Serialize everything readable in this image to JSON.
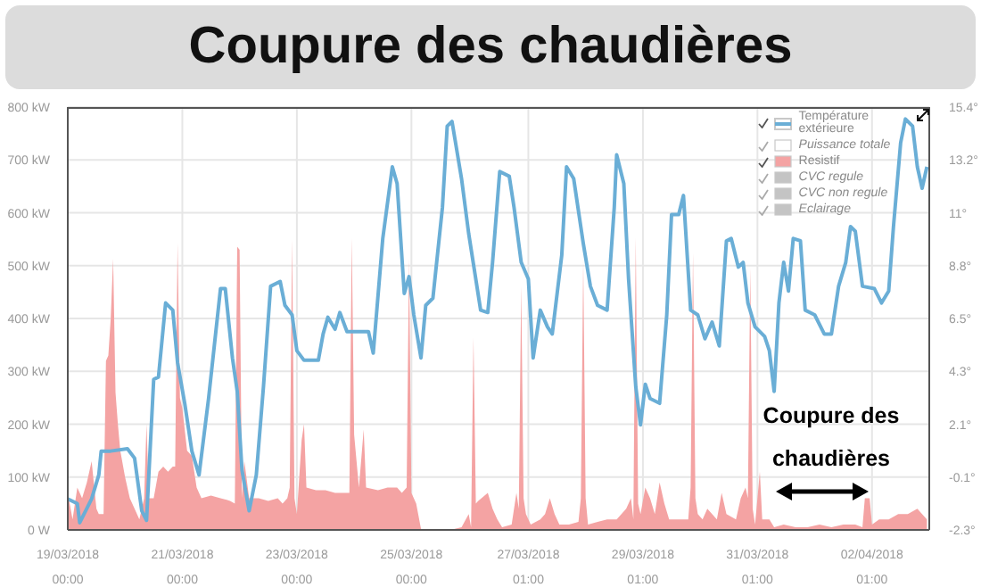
{
  "chart_data": {
    "type": "line",
    "title": "Coupure des chaudières",
    "annotations": [
      "Coupure des chaudières"
    ],
    "xlim": [
      "2018-03-19T00:00",
      "2018-04-03T01:00"
    ],
    "xticks": [
      {
        "value": "2018-03-19T00:00",
        "label": "19/03/2018 00:00"
      },
      {
        "value": "2018-03-21T00:00",
        "label": "21/03/2018 00:00"
      },
      {
        "value": "2018-03-23T00:00",
        "label": "23/03/2018 00:00"
      },
      {
        "value": "2018-03-25T00:00",
        "label": "25/03/2018 00:00"
      },
      {
        "value": "2018-03-27T01:00",
        "label": "27/03/2018 01:00"
      },
      {
        "value": "2018-03-29T01:00",
        "label": "29/03/2018 01:00"
      },
      {
        "value": "2018-03-31T01:00",
        "label": "31/03/2018 01:00"
      },
      {
        "value": "2018-04-02T01:00",
        "label": "02/04/2018 01:00"
      }
    ],
    "ylim": [
      0,
      800
    ],
    "yticks": [
      {
        "value": 0,
        "label": "0 W"
      },
      {
        "value": 100,
        "label": "100 kW"
      },
      {
        "value": 200,
        "label": "200 kW"
      },
      {
        "value": 300,
        "label": "300 kW"
      },
      {
        "value": 400,
        "label": "400 kW"
      },
      {
        "value": 500,
        "label": "500 kW"
      },
      {
        "value": 600,
        "label": "600 kW"
      },
      {
        "value": 700,
        "label": "700 kW"
      },
      {
        "value": 800,
        "label": "800 kW"
      }
    ],
    "y2lim": [
      -2.3,
      15.4
    ],
    "y2ticks": [
      {
        "value": -2.3,
        "label": "-2.3°"
      },
      {
        "value": -0.0875,
        "label": "-0.1°"
      },
      {
        "value": 2.125,
        "label": "2.1°"
      },
      {
        "value": 4.3375,
        "label": "4.3°"
      },
      {
        "value": 6.55,
        "label": "6.5°"
      },
      {
        "value": 8.7625,
        "label": "8.8°"
      },
      {
        "value": 10.975,
        "label": "11°"
      },
      {
        "value": 13.1875,
        "label": "13.2°"
      },
      {
        "value": 15.4,
        "label": "15.4°"
      }
    ],
    "grid": true,
    "legend": "top right",
    "marker": "none",
    "series": [
      {
        "name": "Température extérieure",
        "axis": "y2",
        "color": "#6aaed6",
        "x": [
          "2018-03-19T00:00",
          "2018-03-19T04:00",
          "2018-03-19T05:00",
          "2018-03-19T08:00",
          "2018-03-19T10:00",
          "2018-03-19T13:00",
          "2018-03-19T14:00",
          "2018-03-19T18:00",
          "2018-03-20T01:00",
          "2018-03-20T04:00",
          "2018-03-20T07:00",
          "2018-03-20T09:00",
          "2018-03-20T12:00",
          "2018-03-20T14:00",
          "2018-03-20T17:00",
          "2018-03-20T20:00",
          "2018-03-20T22:00",
          "2018-03-21T01:00",
          "2018-03-21T04:00",
          "2018-03-21T07:00",
          "2018-03-21T11:00",
          "2018-03-21T16:00",
          "2018-03-21T18:00",
          "2018-03-21T21:00",
          "2018-03-21T23:00",
          "2018-03-22T01:00",
          "2018-03-22T04:00",
          "2018-03-22T07:00",
          "2018-03-22T10:00",
          "2018-03-22T13:00",
          "2018-03-22T17:00",
          "2018-03-22T19:00",
          "2018-03-22T22:00",
          "2018-03-23T00:00",
          "2018-03-23T03:00",
          "2018-03-23T09:00",
          "2018-03-23T11:00",
          "2018-03-23T13:00",
          "2018-03-23T16:00",
          "2018-03-23T18:00",
          "2018-03-23T21:00",
          "2018-03-24T06:00",
          "2018-03-24T08:00",
          "2018-03-24T12:00",
          "2018-03-24T16:00",
          "2018-03-24T18:00",
          "2018-03-24T21:00",
          "2018-03-24T23:00",
          "2018-03-25T01:00",
          "2018-03-25T04:00",
          "2018-03-25T06:00",
          "2018-03-25T09:00",
          "2018-03-25T13:00",
          "2018-03-25T15:00",
          "2018-03-25T17:00",
          "2018-03-25T21:00",
          "2018-03-26T00:00",
          "2018-03-26T05:00",
          "2018-03-26T08:00",
          "2018-03-26T10:00",
          "2018-03-26T13:00",
          "2018-03-26T17:00",
          "2018-03-26T19:00",
          "2018-03-26T22:00",
          "2018-03-27T01:00",
          "2018-03-27T03:00",
          "2018-03-27T06:00",
          "2018-03-27T09:00",
          "2018-03-27T11:00",
          "2018-03-27T15:00",
          "2018-03-27T17:00",
          "2018-03-27T20:00",
          "2018-03-28T00:00",
          "2018-03-28T03:00",
          "2018-03-28T06:00",
          "2018-03-28T10:00",
          "2018-03-28T13:00",
          "2018-03-28T14:00",
          "2018-03-28T17:00",
          "2018-03-28T19:00",
          "2018-03-28T22:00",
          "2018-03-29T00:00",
          "2018-03-29T02:00",
          "2018-03-29T04:00",
          "2018-03-29T08:00",
          "2018-03-29T11:00",
          "2018-03-29T13:00",
          "2018-03-29T16:00",
          "2018-03-29T18:00",
          "2018-03-29T21:00",
          "2018-03-30T00:00",
          "2018-03-30T03:00",
          "2018-03-30T06:00",
          "2018-03-30T09:00",
          "2018-03-30T12:00",
          "2018-03-30T14:00",
          "2018-03-30T17:00",
          "2018-03-30T19:00",
          "2018-03-30T21:00",
          "2018-03-31T00:00",
          "2018-03-31T04:00",
          "2018-03-31T06:00",
          "2018-03-31T08:00",
          "2018-03-31T10:00",
          "2018-03-31T12:00",
          "2018-03-31T14:00",
          "2018-03-31T16:00",
          "2018-03-31T19:00",
          "2018-03-31T21:00",
          "2018-04-01T01:00",
          "2018-04-01T05:00",
          "2018-04-01T08:00",
          "2018-04-01T11:00",
          "2018-04-01T14:00",
          "2018-04-01T16:00",
          "2018-04-01T18:00",
          "2018-04-01T21:00",
          "2018-04-02T02:00",
          "2018-04-02T05:00",
          "2018-04-02T08:00",
          "2018-04-02T10:00",
          "2018-04-02T13:00",
          "2018-04-02T15:00",
          "2018-04-02T18:00",
          "2018-04-02T20:00",
          "2018-04-02T22:00",
          "2018-04-03T00:00"
        ],
        "values": [
          -1.0,
          -1.2,
          -2.0,
          -1.4,
          -1.0,
          0.0,
          1.0,
          1.0,
          1.1,
          0.7,
          -1.5,
          -1.9,
          4.0,
          4.1,
          7.2,
          6.9,
          4.7,
          3.0,
          1.0,
          0.0,
          3.2,
          7.8,
          7.8,
          4.9,
          3.5,
          0.2,
          -1.5,
          0.0,
          3.7,
          7.9,
          8.1,
          7.1,
          6.7,
          5.2,
          4.8,
          4.8,
          5.9,
          6.6,
          6.1,
          6.8,
          6.0,
          6.0,
          5.1,
          9.9,
          12.9,
          12.2,
          7.6,
          8.3,
          6.7,
          4.9,
          7.1,
          7.4,
          11.2,
          14.6,
          14.8,
          12.4,
          10.1,
          6.9,
          6.8,
          8.9,
          12.7,
          12.5,
          11.2,
          8.9,
          8.2,
          4.9,
          6.9,
          6.2,
          5.9,
          9.2,
          12.9,
          12.4,
          9.7,
          7.9,
          7.1,
          6.9,
          11.2,
          13.4,
          12.2,
          8.2,
          3.7,
          2.1,
          3.8,
          3.2,
          3.0,
          6.7,
          10.9,
          10.9,
          11.7,
          6.9,
          6.7,
          5.7,
          6.4,
          5.4,
          9.8,
          9.9,
          8.7,
          8.9,
          7.2,
          6.2,
          5.8,
          5.2,
          3.5,
          7.2,
          8.9,
          7.7,
          9.9,
          9.8,
          6.9,
          6.7,
          5.9,
          5.9,
          7.9,
          8.9,
          10.4,
          10.2,
          7.9,
          7.8,
          7.2,
          7.7,
          10.4,
          13.9,
          14.9,
          14.6,
          12.9,
          12.0,
          12.9
        ]
      },
      {
        "name": "Puissance totale",
        "type": "area",
        "color": "#ffffff"
      },
      {
        "name": "Resistif",
        "type": "area",
        "color": "#f4a3a3",
        "x": [
          "2018-03-19T00:00",
          "2018-03-19T02:00",
          "2018-03-19T04:00",
          "2018-03-19T06:00",
          "2018-03-19T08:00",
          "2018-03-19T10:00",
          "2018-03-19T12:00",
          "2018-03-19T13:00",
          "2018-03-19T15:00",
          "2018-03-19T16:00",
          "2018-03-19T17:00",
          "2018-03-19T18:00",
          "2018-03-19T19:00",
          "2018-03-19T20:00",
          "2018-03-19T21:00",
          "2018-03-19T22:00",
          "2018-03-20T00:00",
          "2018-03-20T02:00",
          "2018-03-20T04:00",
          "2018-03-20T06:00",
          "2018-03-20T08:00",
          "2018-03-20T09:00",
          "2018-03-20T10:00",
          "2018-03-20T12:00",
          "2018-03-20T14:00",
          "2018-03-20T16:00",
          "2018-03-20T18:00",
          "2018-03-20T20:00",
          "2018-03-20T21:00",
          "2018-03-20T22:00",
          "2018-03-20T23:00",
          "2018-03-21T00:00",
          "2018-03-21T02:00",
          "2018-03-21T04:00",
          "2018-03-21T06:00",
          "2018-03-21T08:00",
          "2018-03-21T12:00",
          "2018-03-21T16:00",
          "2018-03-21T20:00",
          "2018-03-21T22:00",
          "2018-03-21T23:00",
          "2018-03-22T00:00",
          "2018-03-22T01:00",
          "2018-03-22T02:00",
          "2018-03-22T04:00",
          "2018-03-22T08:00",
          "2018-03-22T12:00",
          "2018-03-22T16:00",
          "2018-03-22T18:00",
          "2018-03-22T20:00",
          "2018-03-22T21:00",
          "2018-03-22T22:00",
          "2018-03-22T23:00",
          "2018-03-23T00:00",
          "2018-03-23T02:00",
          "2018-03-23T03:00",
          "2018-03-23T04:00",
          "2018-03-23T08:00",
          "2018-03-23T12:00",
          "2018-03-23T16:00",
          "2018-03-23T20:00",
          "2018-03-23T22:00",
          "2018-03-23T23:00",
          "2018-03-24T00:00",
          "2018-03-24T02:00",
          "2018-03-24T04:00",
          "2018-03-24T05:00",
          "2018-03-24T10:00",
          "2018-03-24T14:00",
          "2018-03-24T18:00",
          "2018-03-24T20:00",
          "2018-03-24T22:00",
          "2018-03-24T23:00",
          "2018-03-25T00:00",
          "2018-03-25T02:00",
          "2018-03-25T04:00",
          "2018-03-25T06:00",
          "2018-03-25T16:00",
          "2018-03-25T21:00",
          "2018-03-26T00:00",
          "2018-03-26T01:00",
          "2018-03-26T02:00",
          "2018-03-26T03:00",
          "2018-03-26T04:00",
          "2018-03-26T08:00",
          "2018-03-26T10:00",
          "2018-03-26T12:00",
          "2018-03-26T14:00",
          "2018-03-26T18:00",
          "2018-03-26T20:00",
          "2018-03-26T21:00",
          "2018-03-26T22:00",
          "2018-03-26T23:00",
          "2018-03-27T00:00",
          "2018-03-27T02:00",
          "2018-03-27T06:00",
          "2018-03-27T08:00",
          "2018-03-27T10:00",
          "2018-03-27T12:00",
          "2018-03-27T14:00",
          "2018-03-27T18:00",
          "2018-03-27T22:00",
          "2018-03-27T23:00",
          "2018-03-28T00:00",
          "2018-03-28T01:00",
          "2018-03-28T02:00",
          "2018-03-28T06:00",
          "2018-03-28T10:00",
          "2018-03-28T14:00",
          "2018-03-28T18:00",
          "2018-03-28T20:00",
          "2018-03-28T21:00",
          "2018-03-28T22:00",
          "2018-03-28T23:00",
          "2018-03-29T00:00",
          "2018-03-29T02:00",
          "2018-03-29T04:00",
          "2018-03-29T06:00",
          "2018-03-29T08:00",
          "2018-03-29T10:00",
          "2018-03-29T12:00",
          "2018-03-29T16:00",
          "2018-03-29T20:00",
          "2018-03-29T21:00",
          "2018-03-29T22:00",
          "2018-03-29T23:00",
          "2018-03-30T00:00",
          "2018-03-30T02:00",
          "2018-03-30T04:00",
          "2018-03-30T08:00",
          "2018-03-30T10:00",
          "2018-03-30T12:00",
          "2018-03-30T16:00",
          "2018-03-30T18:00",
          "2018-03-30T20:00",
          "2018-03-30T21:00",
          "2018-03-30T22:00",
          "2018-03-30T23:00",
          "2018-03-31T00:00",
          "2018-03-31T02:00",
          "2018-03-31T03:00",
          "2018-03-31T06:00",
          "2018-03-31T08:00",
          "2018-03-31T12:00",
          "2018-03-31T17:00",
          "2018-03-31T22:00",
          "2018-04-01T03:00",
          "2018-04-01T08:00",
          "2018-04-01T13:00",
          "2018-04-01T18:00",
          "2018-04-01T21:00",
          "2018-04-01T22:00",
          "2018-04-02T00:00",
          "2018-04-02T01:00",
          "2018-04-02T04:00",
          "2018-04-02T08:00",
          "2018-04-02T12:00",
          "2018-04-02T16:00",
          "2018-04-02T20:00",
          "2018-04-03T00:00"
        ],
        "values": [
          70,
          20,
          80,
          60,
          90,
          130,
          40,
          30,
          30,
          320,
          330,
          400,
          513,
          260,
          200,
          150,
          100,
          60,
          40,
          20,
          60,
          200,
          60,
          60,
          110,
          120,
          110,
          120,
          120,
          543,
          250,
          230,
          150,
          140,
          80,
          60,
          65,
          60,
          55,
          50,
          536,
          530,
          60,
          130,
          60,
          60,
          55,
          60,
          50,
          60,
          80,
          550,
          60,
          30,
          170,
          200,
          80,
          75,
          75,
          70,
          70,
          70,
          553,
          180,
          80,
          190,
          80,
          75,
          80,
          80,
          70,
          80,
          513,
          70,
          50,
          2,
          0,
          0,
          5,
          30,
          5,
          364,
          50,
          55,
          70,
          40,
          20,
          5,
          10,
          70,
          40,
          462,
          60,
          30,
          10,
          20,
          30,
          60,
          30,
          10,
          10,
          15,
          60,
          507,
          60,
          10,
          15,
          20,
          20,
          40,
          60,
          20,
          553,
          50,
          30,
          80,
          60,
          30,
          90,
          50,
          20,
          20,
          20,
          80,
          524,
          60,
          30,
          20,
          40,
          20,
          70,
          30,
          20,
          60,
          80,
          60,
          496,
          40,
          10,
          110,
          20,
          20,
          5,
          10,
          5,
          5,
          10,
          5,
          10,
          10,
          5,
          60,
          60,
          10,
          20,
          20,
          30,
          30,
          40,
          20
        ]
      },
      {
        "name": "CVC regule",
        "type": "area",
        "color": "#c4c4c4"
      },
      {
        "name": "CVC non regule",
        "type": "area",
        "color": "#c4c4c4"
      },
      {
        "name": "Eclairage",
        "type": "area",
        "color": "#c4c4c4"
      }
    ]
  }
}
